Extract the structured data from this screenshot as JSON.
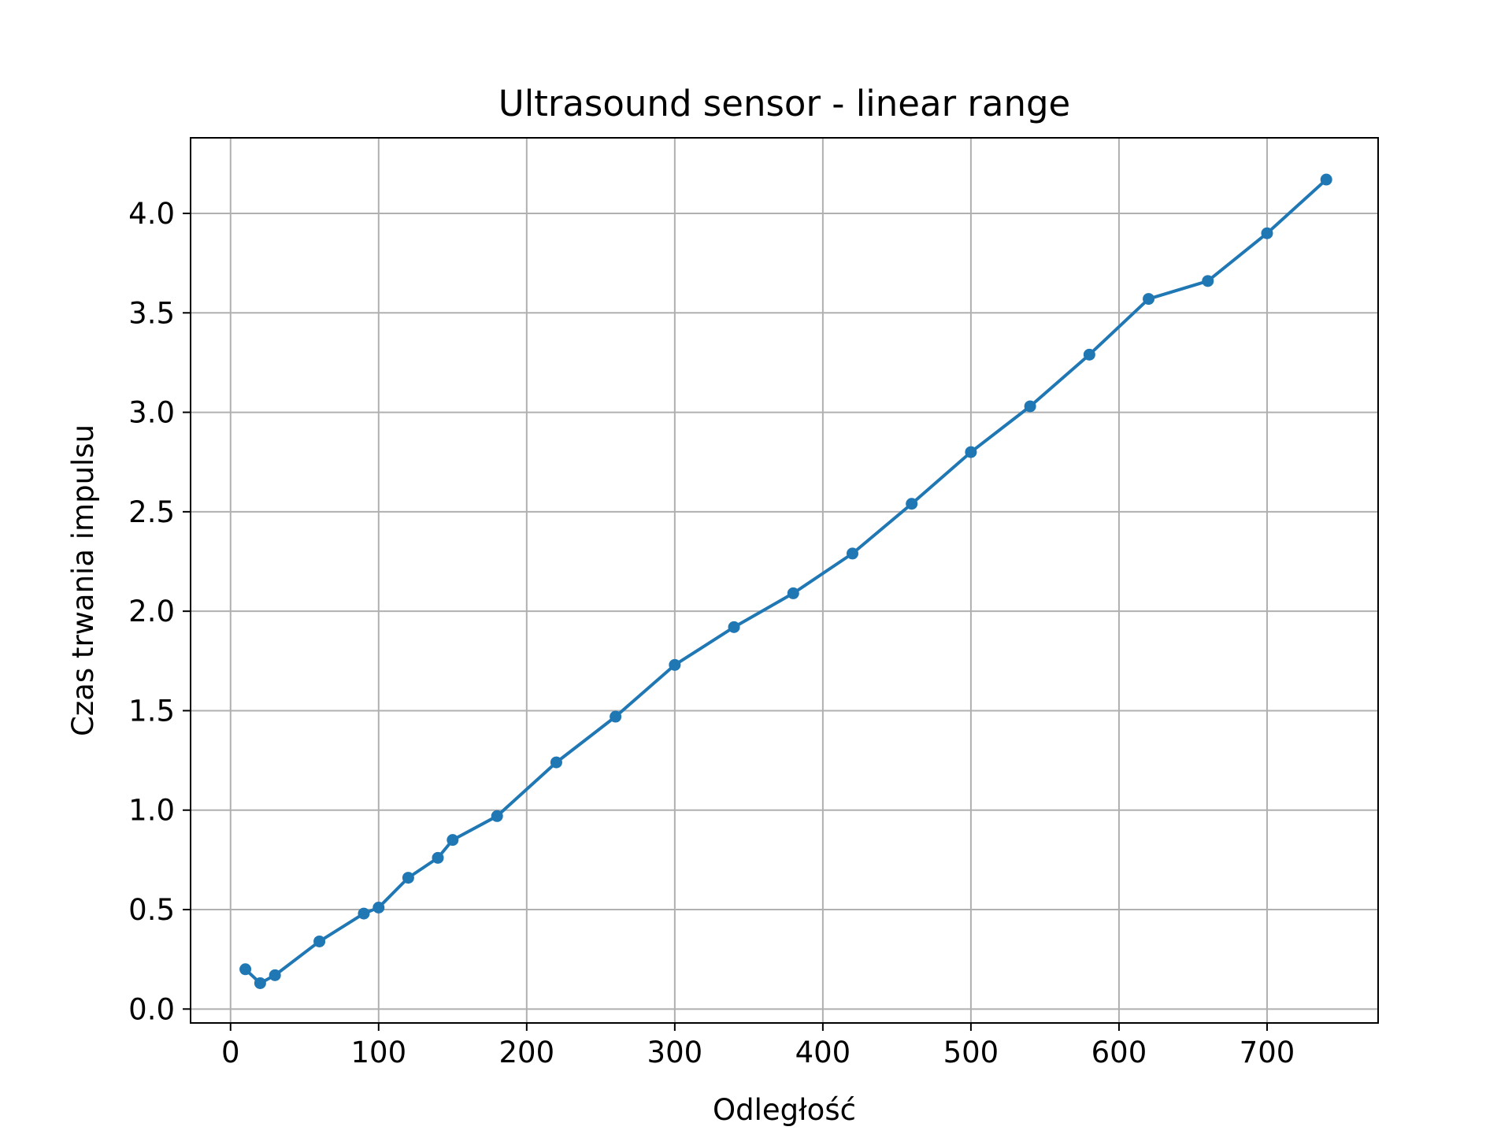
{
  "chart_data": {
    "type": "line",
    "title": "Ultrasound sensor - linear range",
    "xlabel": "Odległość",
    "ylabel": "Czas trwania impulsu",
    "xlim": [
      -27,
      775
    ],
    "ylim": [
      -0.07,
      4.38
    ],
    "xticks": [
      0,
      100,
      200,
      300,
      400,
      500,
      600,
      700
    ],
    "xtick_labels": [
      "0",
      "100",
      "200",
      "300",
      "400",
      "500",
      "600",
      "700"
    ],
    "yticks": [
      0.0,
      0.5,
      1.0,
      1.5,
      2.0,
      2.5,
      3.0,
      3.5,
      4.0
    ],
    "ytick_labels": [
      "0.0",
      "0.5",
      "1.0",
      "1.5",
      "2.0",
      "2.5",
      "3.0",
      "3.5",
      "4.0"
    ],
    "grid": true,
    "legend": false,
    "series": [
      {
        "color": "#1f77b4",
        "marker": "circle",
        "x": [
          10,
          20,
          30,
          60,
          90,
          100,
          120,
          140,
          150,
          180,
          220,
          260,
          300,
          340,
          380,
          420,
          460,
          500,
          540,
          580,
          620,
          660,
          700,
          740
        ],
        "y": [
          0.2,
          0.13,
          0.17,
          0.34,
          0.48,
          0.51,
          0.66,
          0.76,
          0.85,
          0.97,
          1.24,
          1.47,
          1.73,
          1.92,
          2.09,
          2.29,
          2.54,
          2.8,
          3.03,
          3.29,
          3.57,
          3.66,
          3.9,
          4.17
        ]
      }
    ]
  }
}
